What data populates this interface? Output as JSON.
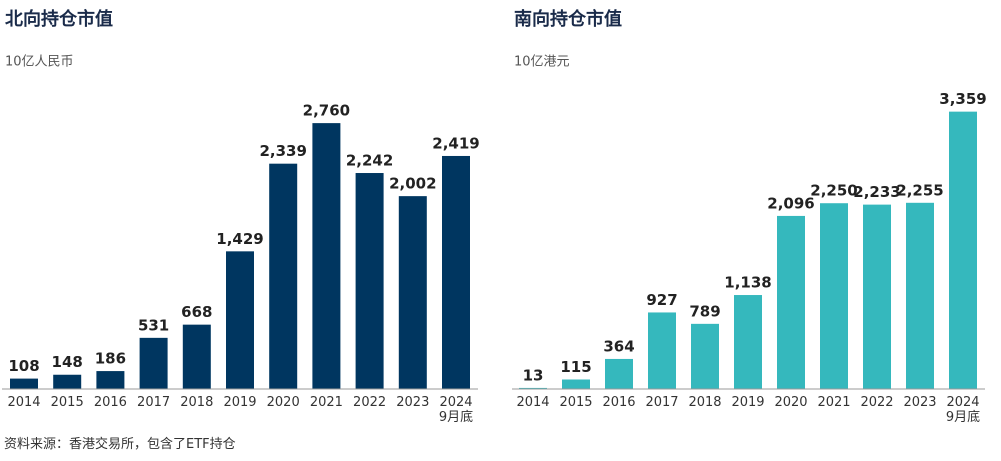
{
  "chart_data": [
    {
      "type": "bar",
      "title": "北向持仓市值",
      "subtitle": "10亿人民币",
      "categories": [
        "2014",
        "2015",
        "2016",
        "2017",
        "2018",
        "2019",
        "2020",
        "2021",
        "2022",
        "2023",
        "2024\n9月底"
      ],
      "values": [
        108,
        148,
        186,
        531,
        668,
        1429,
        2339,
        2760,
        2242,
        2002,
        2419
      ],
      "value_labels": [
        "108",
        "148",
        "186",
        "531",
        "668",
        "1,429",
        "2,339",
        "2,760",
        "2,242",
        "2,002",
        "2,419"
      ],
      "color": "#003660",
      "ylim": [
        0,
        3000
      ]
    },
    {
      "type": "bar",
      "title": "南向持仓市值",
      "subtitle": "10亿港元",
      "categories": [
        "2014",
        "2015",
        "2016",
        "2017",
        "2018",
        "2019",
        "2020",
        "2021",
        "2022",
        "2023",
        "2024\n9月底"
      ],
      "values": [
        13,
        115,
        364,
        927,
        789,
        1138,
        2096,
        2250,
        2233,
        2255,
        3359
      ],
      "value_labels": [
        "13",
        "115",
        "364",
        "927",
        "789",
        "1,138",
        "2,096",
        "2,250",
        "2,233",
        "2,255",
        "3,359"
      ],
      "color": "#35b8bd",
      "ylim": [
        0,
        3500
      ]
    }
  ],
  "source": "资料来源：香港交易所，包含了ETF持仓"
}
